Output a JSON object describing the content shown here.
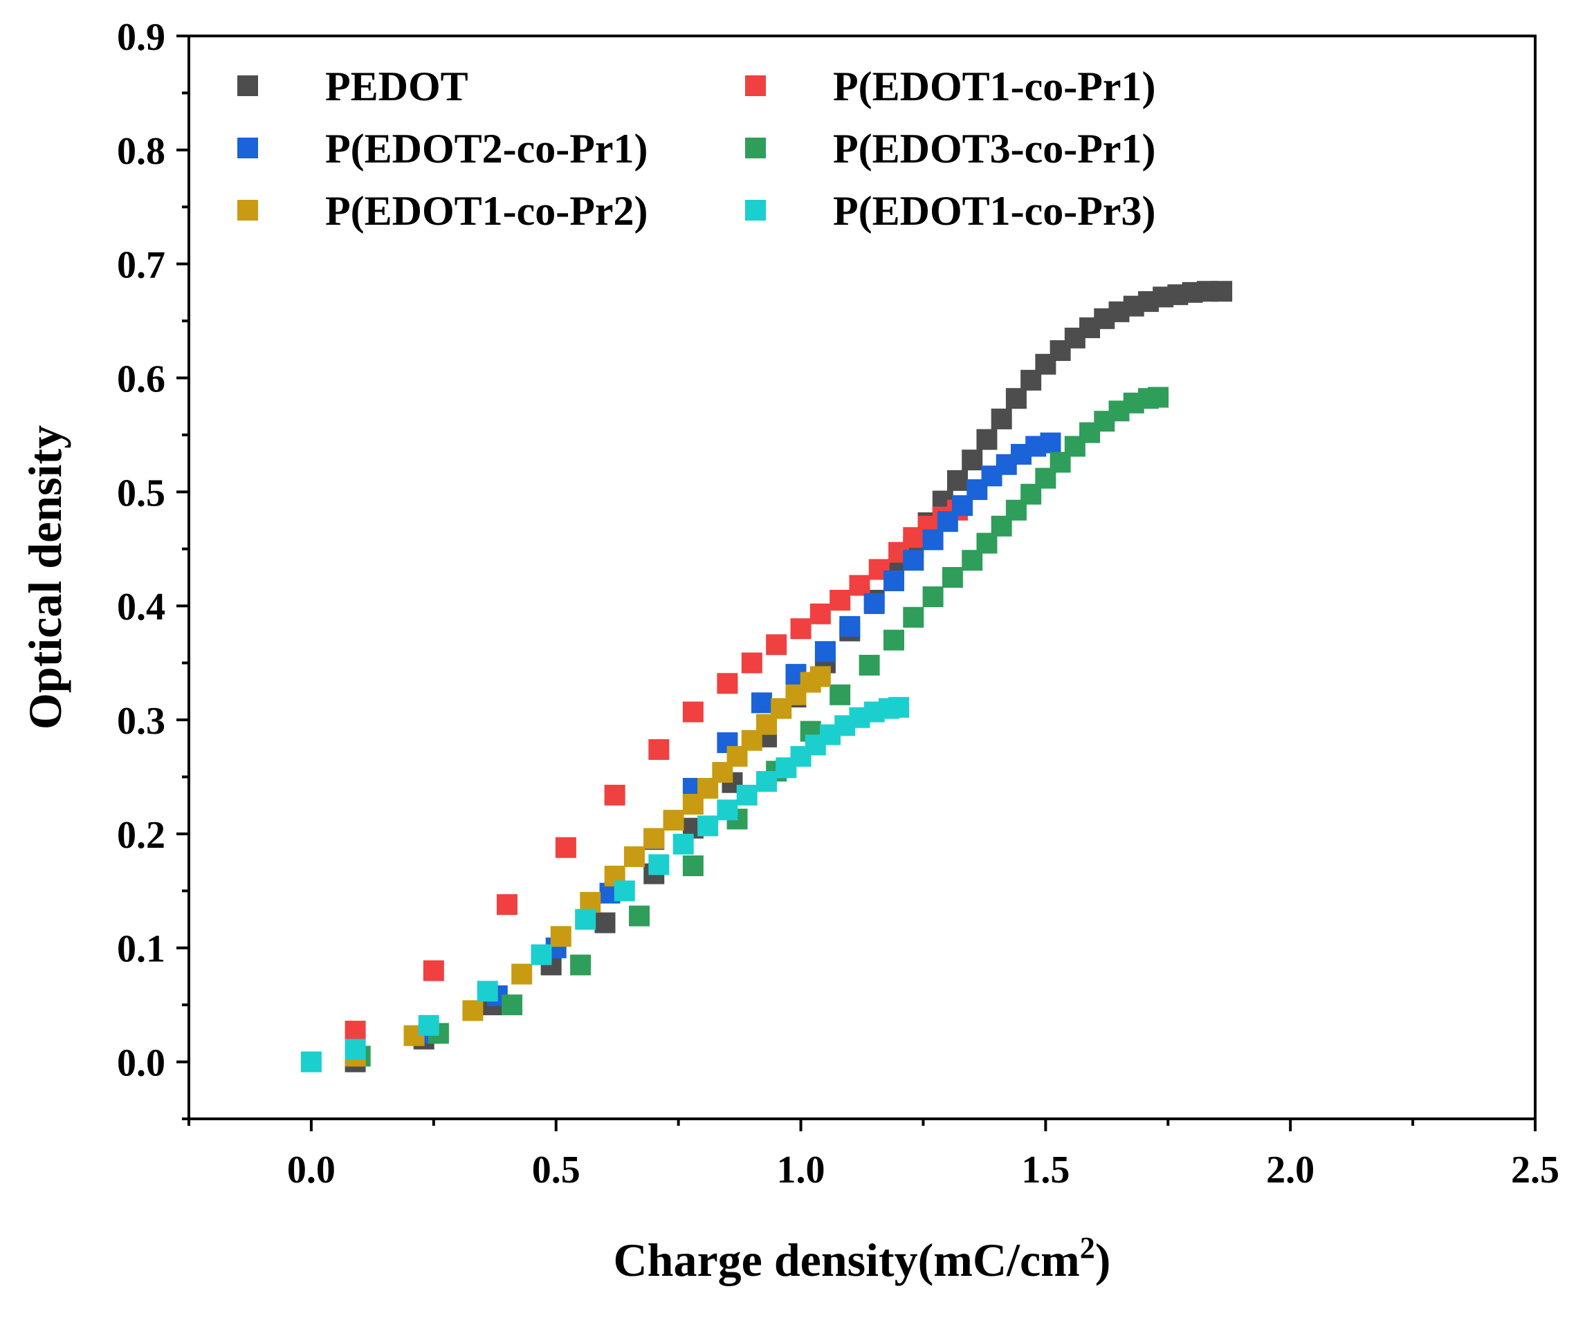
{
  "chart_data": {
    "type": "scatter",
    "title": "",
    "xlabel": "Charge density(mC/cm",
    "xlabel_sup": "2",
    "xlabel_close": ")",
    "ylabel": "Optical density",
    "xlim": [
      -0.25,
      2.5
    ],
    "ylim": [
      -0.05,
      0.9
    ],
    "x_ticks": [
      "0.0",
      "0.5",
      "1.0",
      "1.5",
      "2.0",
      "2.5"
    ],
    "y_ticks": [
      "0.0",
      "0.1",
      "0.2",
      "0.3",
      "0.4",
      "0.5",
      "0.6",
      "0.7",
      "0.8",
      "0.9"
    ],
    "grid": false,
    "legend_position": "top-left",
    "series": [
      {
        "name": "PEDOT",
        "color": "#4d4d4d",
        "points": [
          [
            0.09,
            0.0
          ],
          [
            0.23,
            0.02
          ],
          [
            0.37,
            0.05
          ],
          [
            0.49,
            0.085
          ],
          [
            0.6,
            0.122
          ],
          [
            0.7,
            0.165
          ],
          [
            0.78,
            0.205
          ],
          [
            0.86,
            0.245
          ],
          [
            0.93,
            0.285
          ],
          [
            0.99,
            0.32
          ],
          [
            1.05,
            0.35
          ],
          [
            1.1,
            0.378
          ],
          [
            1.15,
            0.405
          ],
          [
            1.19,
            0.43
          ],
          [
            1.23,
            0.452
          ],
          [
            1.26,
            0.473
          ],
          [
            1.29,
            0.492
          ],
          [
            1.32,
            0.51
          ],
          [
            1.35,
            0.528
          ],
          [
            1.38,
            0.546
          ],
          [
            1.41,
            0.564
          ],
          [
            1.44,
            0.582
          ],
          [
            1.47,
            0.598
          ],
          [
            1.5,
            0.612
          ],
          [
            1.53,
            0.624
          ],
          [
            1.56,
            0.635
          ],
          [
            1.59,
            0.644
          ],
          [
            1.62,
            0.652
          ],
          [
            1.65,
            0.658
          ],
          [
            1.68,
            0.663
          ],
          [
            1.71,
            0.667
          ],
          [
            1.74,
            0.671
          ],
          [
            1.77,
            0.673
          ],
          [
            1.8,
            0.675
          ],
          [
            1.83,
            0.676
          ],
          [
            1.86,
            0.676
          ]
        ]
      },
      {
        "name": "P(EDOT1-co-Pr1)",
        "color": "#f04040",
        "points": [
          [
            0.09,
            0.027
          ],
          [
            0.25,
            0.08
          ],
          [
            0.4,
            0.138
          ],
          [
            0.52,
            0.188
          ],
          [
            0.62,
            0.234
          ],
          [
            0.71,
            0.274
          ],
          [
            0.78,
            0.307
          ],
          [
            0.85,
            0.332
          ],
          [
            0.9,
            0.35
          ],
          [
            0.95,
            0.366
          ],
          [
            1.0,
            0.38
          ],
          [
            1.04,
            0.393
          ],
          [
            1.08,
            0.405
          ],
          [
            1.12,
            0.418
          ],
          [
            1.16,
            0.432
          ],
          [
            1.2,
            0.447
          ],
          [
            1.23,
            0.46
          ],
          [
            1.26,
            0.47
          ],
          [
            1.29,
            0.478
          ],
          [
            1.32,
            0.484
          ]
        ]
      },
      {
        "name": "P(EDOT2-co-Pr1)",
        "color": "#1a63d9",
        "points": [
          [
            0.09,
            0.005
          ],
          [
            0.24,
            0.025
          ],
          [
            0.38,
            0.058
          ],
          [
            0.5,
            0.1
          ],
          [
            0.61,
            0.148
          ],
          [
            0.7,
            0.195
          ],
          [
            0.78,
            0.24
          ],
          [
            0.85,
            0.28
          ],
          [
            0.92,
            0.315
          ],
          [
            0.99,
            0.34
          ],
          [
            1.05,
            0.36
          ],
          [
            1.1,
            0.382
          ],
          [
            1.15,
            0.402
          ],
          [
            1.19,
            0.422
          ],
          [
            1.23,
            0.44
          ],
          [
            1.27,
            0.458
          ],
          [
            1.3,
            0.474
          ],
          [
            1.33,
            0.488
          ],
          [
            1.36,
            0.502
          ],
          [
            1.39,
            0.514
          ],
          [
            1.42,
            0.524
          ],
          [
            1.45,
            0.533
          ],
          [
            1.48,
            0.54
          ],
          [
            1.51,
            0.543
          ]
        ]
      },
      {
        "name": "P(EDOT3-co-Pr1)",
        "color": "#2e9e5a",
        "points": [
          [
            0.1,
            0.005
          ],
          [
            0.26,
            0.025
          ],
          [
            0.41,
            0.05
          ],
          [
            0.55,
            0.085
          ],
          [
            0.67,
            0.128
          ],
          [
            0.78,
            0.172
          ],
          [
            0.87,
            0.213
          ],
          [
            0.95,
            0.255
          ],
          [
            1.02,
            0.29
          ],
          [
            1.08,
            0.322
          ],
          [
            1.14,
            0.348
          ],
          [
            1.19,
            0.37
          ],
          [
            1.23,
            0.39
          ],
          [
            1.27,
            0.408
          ],
          [
            1.31,
            0.425
          ],
          [
            1.35,
            0.44
          ],
          [
            1.38,
            0.455
          ],
          [
            1.41,
            0.47
          ],
          [
            1.44,
            0.484
          ],
          [
            1.47,
            0.498
          ],
          [
            1.5,
            0.512
          ],
          [
            1.53,
            0.526
          ],
          [
            1.56,
            0.54
          ],
          [
            1.59,
            0.552
          ],
          [
            1.62,
            0.562
          ],
          [
            1.65,
            0.571
          ],
          [
            1.68,
            0.578
          ],
          [
            1.71,
            0.582
          ],
          [
            1.73,
            0.583
          ]
        ]
      },
      {
        "name": "P(EDOT1-co-Pr2)",
        "color": "#c89b12",
        "points": [
          [
            0.09,
            0.005
          ],
          [
            0.21,
            0.023
          ],
          [
            0.33,
            0.045
          ],
          [
            0.43,
            0.077
          ],
          [
            0.51,
            0.11
          ],
          [
            0.57,
            0.14
          ],
          [
            0.62,
            0.163
          ],
          [
            0.66,
            0.18
          ],
          [
            0.7,
            0.196
          ],
          [
            0.74,
            0.212
          ],
          [
            0.78,
            0.226
          ],
          [
            0.81,
            0.24
          ],
          [
            0.84,
            0.254
          ],
          [
            0.87,
            0.268
          ],
          [
            0.9,
            0.282
          ],
          [
            0.93,
            0.296
          ],
          [
            0.96,
            0.31
          ],
          [
            0.99,
            0.322
          ],
          [
            1.02,
            0.333
          ],
          [
            1.04,
            0.338
          ]
        ]
      },
      {
        "name": "P(EDOT1-co-Pr3)",
        "color": "#1ccfcf",
        "points": [
          [
            0.0,
            0.0
          ],
          [
            0.09,
            0.011
          ],
          [
            0.24,
            0.032
          ],
          [
            0.36,
            0.062
          ],
          [
            0.47,
            0.094
          ],
          [
            0.56,
            0.125
          ],
          [
            0.64,
            0.15
          ],
          [
            0.71,
            0.173
          ],
          [
            0.76,
            0.191
          ],
          [
            0.81,
            0.207
          ],
          [
            0.85,
            0.221
          ],
          [
            0.89,
            0.234
          ],
          [
            0.93,
            0.246
          ],
          [
            0.97,
            0.258
          ],
          [
            1.0,
            0.268
          ],
          [
            1.03,
            0.278
          ],
          [
            1.06,
            0.287
          ],
          [
            1.09,
            0.295
          ],
          [
            1.12,
            0.302
          ],
          [
            1.15,
            0.307
          ],
          [
            1.18,
            0.31
          ],
          [
            1.2,
            0.311
          ]
        ]
      }
    ]
  }
}
